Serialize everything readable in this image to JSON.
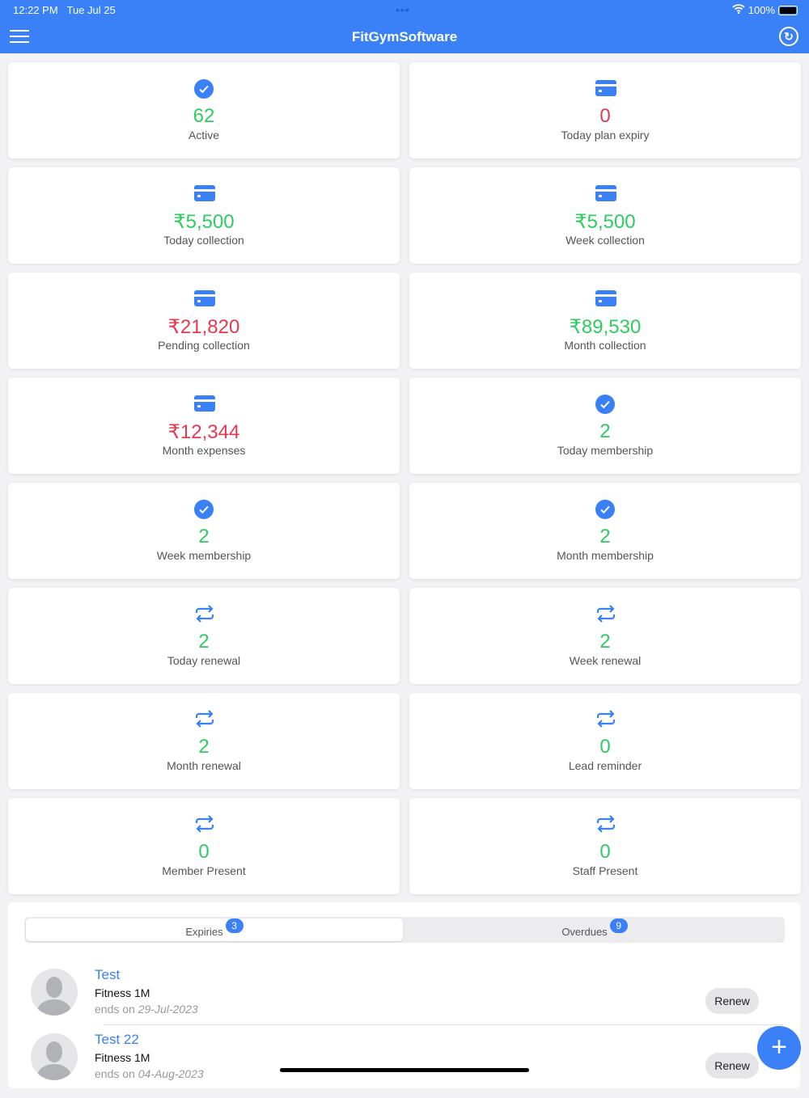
{
  "status": {
    "time": "12:22 PM",
    "date": "Tue Jul 25",
    "battery": "100%"
  },
  "header": {
    "title": "FitGymSoftware"
  },
  "colors": {
    "accent": "#3a80f7",
    "positive": "#2ecc5f",
    "negative": "#e8374e"
  },
  "cards": [
    {
      "icon": "check",
      "value": "62",
      "label": "Active",
      "tone": "positive"
    },
    {
      "icon": "card",
      "value": "0",
      "label": "Today plan expiry",
      "tone": "negative"
    },
    {
      "icon": "card",
      "value": "₹5,500",
      "label": "Today collection",
      "tone": "positive"
    },
    {
      "icon": "card",
      "value": "₹5,500",
      "label": "Week collection",
      "tone": "positive"
    },
    {
      "icon": "card",
      "value": "₹21,820",
      "label": "Pending collection",
      "tone": "negative"
    },
    {
      "icon": "card",
      "value": "₹89,530",
      "label": "Month collection",
      "tone": "positive"
    },
    {
      "icon": "card",
      "value": "₹12,344",
      "label": "Month expenses",
      "tone": "negative"
    },
    {
      "icon": "check",
      "value": "2",
      "label": "Today membership",
      "tone": "positive"
    },
    {
      "icon": "check",
      "value": "2",
      "label": "Week membership",
      "tone": "positive"
    },
    {
      "icon": "check",
      "value": "2",
      "label": "Month membership",
      "tone": "positive"
    },
    {
      "icon": "repeat",
      "value": "2",
      "label": "Today renewal",
      "tone": "positive"
    },
    {
      "icon": "repeat",
      "value": "2",
      "label": "Week renewal",
      "tone": "positive"
    },
    {
      "icon": "repeat",
      "value": "2",
      "label": "Month renewal",
      "tone": "positive"
    },
    {
      "icon": "repeat",
      "value": "0",
      "label": "Lead reminder",
      "tone": "positive"
    },
    {
      "icon": "repeat",
      "value": "0",
      "label": "Member Present",
      "tone": "positive"
    },
    {
      "icon": "repeat",
      "value": "0",
      "label": "Staff Present",
      "tone": "positive"
    }
  ],
  "tabs": [
    {
      "label": "Expiries",
      "count": "3",
      "selected": true
    },
    {
      "label": "Overdues",
      "count": "9",
      "selected": false
    }
  ],
  "members": [
    {
      "name": "Test",
      "plan": "Fitness 1M",
      "ends_prefix": "ends on",
      "ends_date": "29-Jul-2023",
      "action": "Renew"
    },
    {
      "name": "Test 22",
      "plan": "Fitness 1M",
      "ends_prefix": "ends on",
      "ends_date": "04-Aug-2023",
      "action": "Renew"
    }
  ],
  "fab": "+"
}
